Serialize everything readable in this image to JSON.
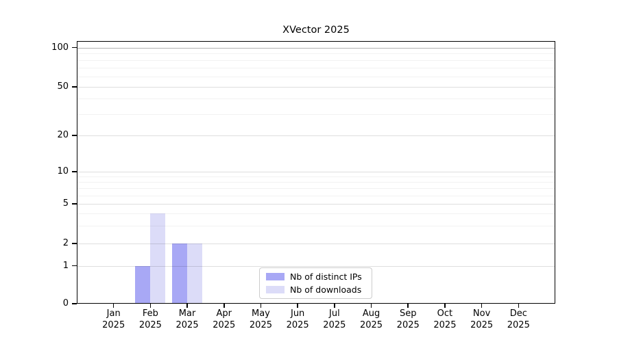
{
  "chart_data": {
    "type": "bar",
    "title": "XVector 2025",
    "categories": [
      "Jan",
      "Feb",
      "Mar",
      "Apr",
      "May",
      "Jun",
      "Jul",
      "Aug",
      "Sep",
      "Oct",
      "Nov",
      "Dec"
    ],
    "x_tick_year": "2025",
    "series": [
      {
        "name": "Nb of distinct IPs",
        "color": "#a8a8f5",
        "values": [
          0,
          1,
          2,
          0,
          0,
          0,
          0,
          0,
          0,
          0,
          0,
          0
        ]
      },
      {
        "name": "Nb of downloads",
        "color": "#dcdcf8",
        "values": [
          0,
          4,
          2,
          0,
          0,
          0,
          0,
          0,
          0,
          0,
          0,
          0
        ]
      }
    ],
    "yscale": "symlog",
    "ylim": [
      0,
      100
    ],
    "y_major_ticks": [
      0,
      1,
      2,
      5,
      10,
      20,
      50,
      100
    ],
    "y_minor_ticks": [
      3,
      4,
      6,
      7,
      8,
      9,
      30,
      40,
      60,
      70,
      80,
      90
    ],
    "grid": "horizontal",
    "legend_position": "lower center",
    "axis_color": "#000000",
    "background_color": "#ffffff"
  }
}
